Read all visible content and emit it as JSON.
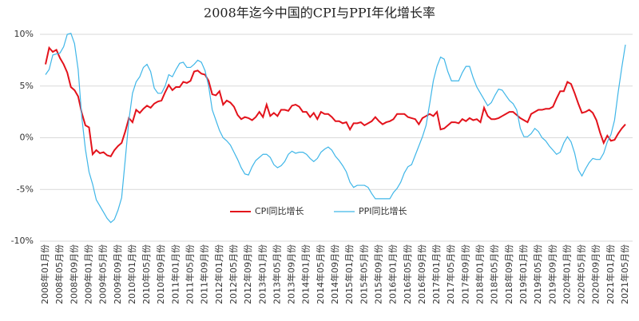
{
  "chart_data": {
    "type": "line",
    "title": "2008年迄今中国的CPI与PPI年化增长率",
    "categories": [
      "2008年01月份",
      null,
      null,
      null,
      "2008年05月份",
      null,
      null,
      null,
      "2008年09月份",
      null,
      null,
      null,
      "2009年01月份",
      null,
      null,
      null,
      "2009年05月份",
      null,
      null,
      null,
      "2009年09月份",
      null,
      null,
      null,
      "2010年01月份",
      null,
      null,
      null,
      "2010年05月份",
      null,
      null,
      null,
      "2010年09月份",
      null,
      null,
      null,
      "2011年01月份",
      null,
      null,
      null,
      "2011年05月份",
      null,
      null,
      null,
      "2011年09月份",
      null,
      null,
      null,
      "2012年01月份",
      null,
      null,
      null,
      "2012年05月份",
      null,
      null,
      null,
      "2012年09月份",
      null,
      null,
      null,
      "2013年01月份",
      null,
      null,
      null,
      "2013年05月份",
      null,
      null,
      null,
      "2013年09月份",
      null,
      null,
      null,
      "2014年01月份",
      null,
      null,
      null,
      "2014年05月份",
      null,
      null,
      null,
      "2014年09月份",
      null,
      null,
      null,
      "2015年01月份",
      null,
      null,
      null,
      "2015年05月份",
      null,
      null,
      null,
      "2015年09月份",
      null,
      null,
      null,
      "2016年01月份",
      null,
      null,
      null,
      "2016年05月份",
      null,
      null,
      null,
      "2016年09月份",
      null,
      null,
      null,
      "2017年01月份",
      null,
      null,
      null,
      "2017年05月份",
      null,
      null,
      null,
      "2017年09月份",
      null,
      null,
      null,
      "2018年01月份",
      null,
      null,
      null,
      "2018年05月份",
      null,
      null,
      null,
      "2018年09月份",
      null,
      null,
      null,
      "2019年01月份",
      null,
      null,
      null,
      "2019年05月份",
      null,
      null,
      null,
      "2019年09月份",
      null,
      null,
      null,
      "2020年01月份",
      null,
      null,
      null,
      "2020年05月份",
      null,
      null,
      null,
      "2020年09月份",
      null,
      null,
      null,
      "2021年01月份",
      null,
      null,
      null,
      "2021年05月份"
    ],
    "series": [
      {
        "name": "CPI同比增长",
        "color": "#e3121b",
        "values": [
          7.1,
          8.7,
          8.3,
          8.5,
          7.7,
          7.1,
          6.3,
          4.9,
          4.6,
          4.0,
          2.4,
          1.2,
          1.0,
          -1.6,
          -1.2,
          -1.5,
          -1.4,
          -1.7,
          -1.8,
          -1.2,
          -0.8,
          -0.5,
          0.6,
          1.9,
          1.5,
          2.7,
          2.4,
          2.8,
          3.1,
          2.9,
          3.3,
          3.5,
          3.6,
          4.4,
          5.1,
          4.6,
          4.9,
          4.9,
          5.4,
          5.3,
          5.5,
          6.4,
          6.5,
          6.2,
          6.1,
          5.5,
          4.2,
          4.1,
          4.5,
          3.2,
          3.6,
          3.4,
          3.0,
          2.2,
          1.8,
          2.0,
          1.9,
          1.7,
          2.0,
          2.5,
          2.0,
          3.2,
          2.1,
          2.4,
          2.1,
          2.7,
          2.7,
          2.6,
          3.1,
          3.2,
          3.0,
          2.5,
          2.5,
          2.0,
          2.4,
          1.8,
          2.5,
          2.3,
          2.3,
          2.0,
          1.6,
          1.6,
          1.4,
          1.5,
          0.8,
          1.4,
          1.4,
          1.5,
          1.2,
          1.4,
          1.6,
          2.0,
          1.6,
          1.3,
          1.5,
          1.6,
          1.8,
          2.3,
          2.3,
          2.3,
          2.0,
          1.9,
          1.8,
          1.3,
          1.9,
          2.1,
          2.3,
          2.1,
          2.5,
          0.8,
          0.9,
          1.2,
          1.5,
          1.5,
          1.4,
          1.8,
          1.6,
          1.9,
          1.7,
          1.8,
          1.5,
          2.9,
          2.1,
          1.8,
          1.8,
          1.9,
          2.1,
          2.3,
          2.5,
          2.5,
          2.2,
          1.9,
          1.7,
          1.5,
          2.3,
          2.5,
          2.7,
          2.7,
          2.8,
          2.8,
          3.0,
          3.8,
          4.5,
          4.5,
          5.4,
          5.2,
          4.3,
          3.3,
          2.4,
          2.5,
          2.7,
          2.4,
          1.7,
          0.5,
          -0.5,
          0.2,
          -0.3,
          -0.2,
          0.4,
          0.9,
          1.3
        ]
      },
      {
        "name": "PPI同比增长",
        "color": "#3fb6e8",
        "values": [
          6.1,
          6.6,
          8.0,
          8.1,
          8.2,
          8.8,
          10.0,
          10.1,
          9.1,
          6.6,
          2.0,
          -1.1,
          -3.3,
          -4.5,
          -6.0,
          -6.6,
          -7.2,
          -7.8,
          -8.2,
          -7.9,
          -7.0,
          -5.8,
          -2.1,
          1.7,
          4.3,
          5.4,
          5.9,
          6.8,
          7.1,
          6.4,
          4.8,
          4.3,
          4.3,
          5.0,
          6.1,
          5.9,
          6.6,
          7.2,
          7.3,
          6.8,
          6.8,
          7.1,
          7.5,
          7.3,
          6.5,
          5.0,
          2.7,
          1.7,
          0.7,
          0.0,
          -0.3,
          -0.7,
          -1.4,
          -2.1,
          -2.9,
          -3.5,
          -3.6,
          -2.8,
          -2.2,
          -1.9,
          -1.6,
          -1.6,
          -1.9,
          -2.6,
          -2.9,
          -2.7,
          -2.3,
          -1.6,
          -1.3,
          -1.5,
          -1.4,
          -1.4,
          -1.6,
          -2.0,
          -2.3,
          -2.0,
          -1.4,
          -1.1,
          -0.9,
          -1.2,
          -1.8,
          -2.2,
          -2.7,
          -3.3,
          -4.3,
          -4.8,
          -4.6,
          -4.6,
          -4.6,
          -4.8,
          -5.4,
          -5.9,
          -5.9,
          -5.9,
          -5.9,
          -5.9,
          -5.3,
          -4.9,
          -4.3,
          -3.4,
          -2.8,
          -2.6,
          -1.7,
          -0.8,
          0.1,
          1.2,
          3.3,
          5.5,
          6.9,
          7.8,
          7.6,
          6.4,
          5.5,
          5.5,
          5.5,
          6.3,
          6.9,
          6.9,
          5.8,
          4.9,
          4.3,
          3.7,
          3.1,
          3.4,
          4.1,
          4.7,
          4.6,
          4.1,
          3.6,
          3.3,
          2.7,
          0.9,
          0.1,
          0.1,
          0.4,
          0.9,
          0.6,
          0.0,
          -0.3,
          -0.8,
          -1.2,
          -1.6,
          -1.4,
          -0.5,
          0.1,
          -0.4,
          -1.5,
          -3.1,
          -3.7,
          -3.0,
          -2.4,
          -2.0,
          -2.1,
          -2.1,
          -1.5,
          -0.4,
          0.3,
          1.7,
          4.4,
          6.8,
          9.0
        ]
      }
    ],
    "ylim": [
      -10,
      10
    ],
    "yticks": [
      {
        "value": -10,
        "label": "-10%"
      },
      {
        "value": -5,
        "label": "-5%"
      },
      {
        "value": 0,
        "label": "0%"
      },
      {
        "value": 5,
        "label": "5%"
      },
      {
        "value": 10,
        "label": "10%"
      }
    ],
    "grid": true,
    "legend": "bottom"
  }
}
